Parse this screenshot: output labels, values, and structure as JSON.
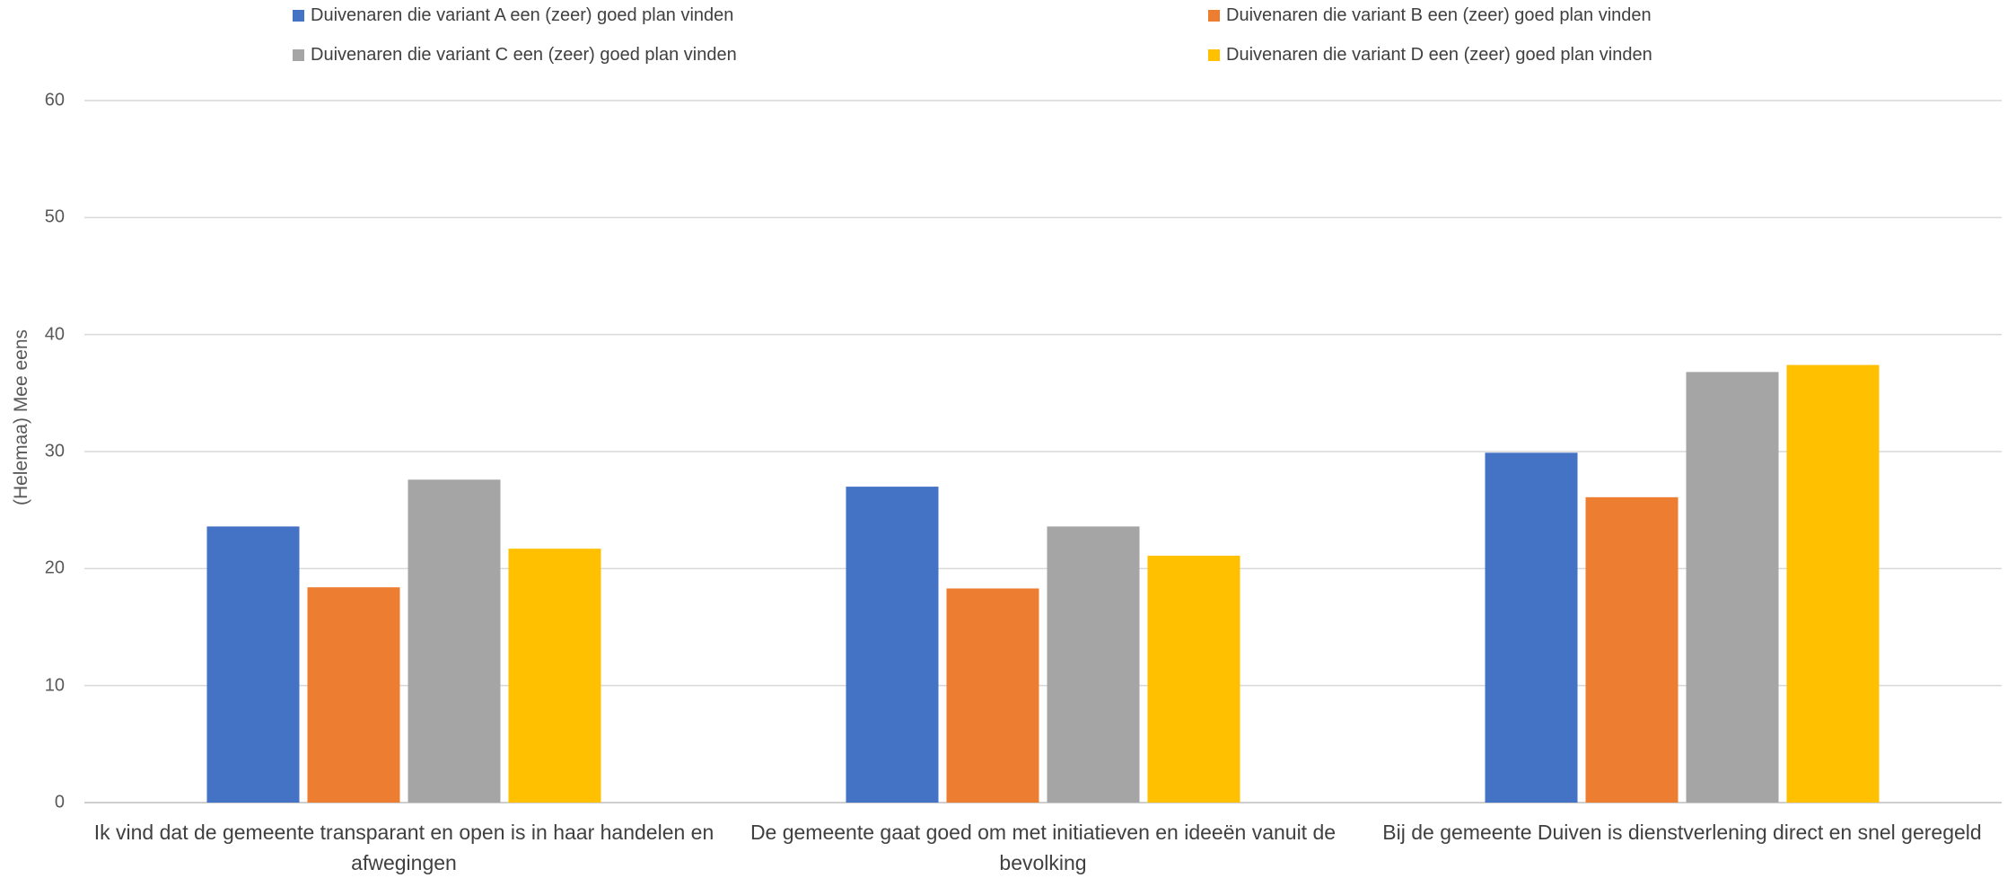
{
  "chart_data": {
    "type": "bar",
    "title": "",
    "xlabel": "",
    "ylabel": "(Helemaa) Mee eens",
    "ylim": [
      0,
      60
    ],
    "yticks": [
      0,
      10,
      20,
      30,
      40,
      50,
      60
    ],
    "grid": true,
    "legend_position": "top",
    "categories": [
      "Ik vind dat de gemeente transparant en open is in haar handelen en afwegingen",
      "De gemeente gaat goed om met initiatieven en ideeën vanuit de bevolking",
      "Bij de gemeente Duiven is dienstverlening direct en snel geregeld"
    ],
    "series": [
      {
        "name": "Duivenaren die variant A een (zeer) goed plan vinden",
        "color": "#4472C4",
        "values": [
          23.6,
          27.0,
          29.9
        ]
      },
      {
        "name": "Duivenaren die variant B een (zeer) goed plan vinden",
        "color": "#ED7D31",
        "values": [
          18.4,
          18.3,
          26.1
        ]
      },
      {
        "name": "Duivenaren die variant C een (zeer) goed plan vinden",
        "color": "#A5A5A5",
        "values": [
          27.6,
          23.6,
          36.8
        ]
      },
      {
        "name": "Duivenaren die variant D een (zeer) goed plan vinden",
        "color": "#FFC000",
        "values": [
          21.7,
          21.1,
          37.4
        ]
      }
    ]
  }
}
